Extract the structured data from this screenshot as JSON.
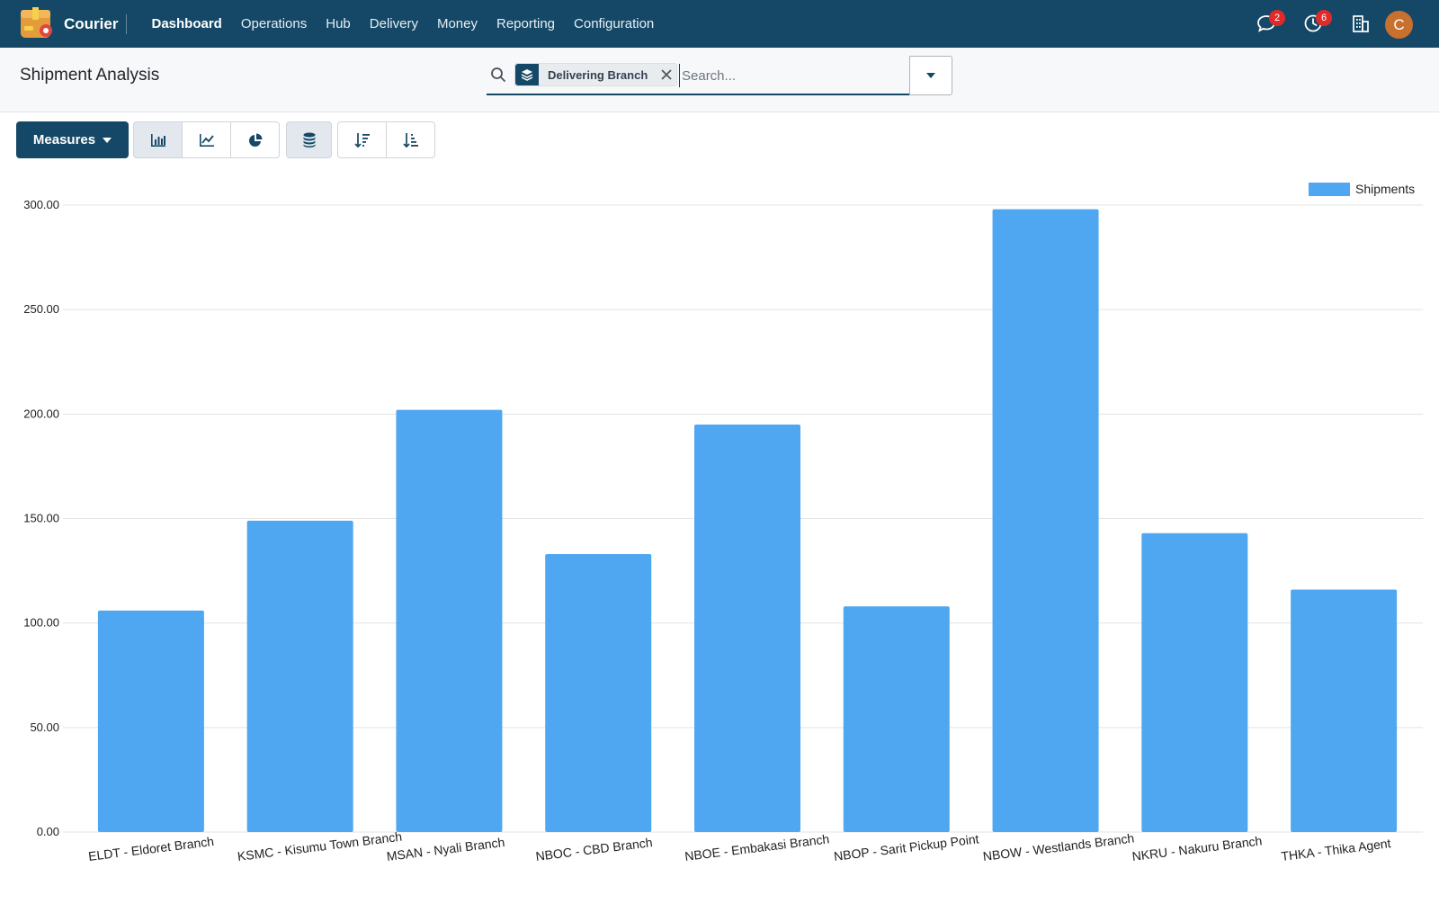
{
  "navbar": {
    "app_name": "Courier",
    "menu": [
      "Dashboard",
      "Operations",
      "Hub",
      "Delivery",
      "Money",
      "Reporting",
      "Configuration"
    ],
    "active_menu": "Dashboard",
    "messages_badge": "2",
    "activities_badge": "6",
    "avatar_initial": "C",
    "avatar_color": "#c8702e",
    "brand_color": "#154867"
  },
  "control_panel": {
    "title": "Shipment Analysis",
    "facet_label": "Delivering Branch",
    "search_placeholder": "Search..."
  },
  "toolbar": {
    "measures_label": "Measures",
    "chart_mode_buttons": [
      "bar-chart-icon",
      "line-chart-icon",
      "pie-chart-icon"
    ],
    "active_mode": "bar-chart-icon",
    "stacked_active": true,
    "sort_buttons": [
      "sort-descending-icon",
      "sort-ascending-icon"
    ]
  },
  "chart_data": {
    "type": "bar",
    "categories": [
      "ELDT - Eldoret Branch",
      "KSMC - Kisumu Town Branch",
      "MSAN - Nyali Branch",
      "NBOC - CBD Branch",
      "NBOE - Embakasi Branch",
      "NBOP - Sarit Pickup Point",
      "NBOW - Westlands Branch",
      "NKRU - Nakuru Branch",
      "THKA - Thika Agent"
    ],
    "series": [
      {
        "name": "Shipments",
        "values": [
          106,
          149,
          202,
          133,
          195,
          108,
          298,
          143,
          116
        ],
        "color": "#4fa6f1"
      }
    ],
    "yticks": [
      "0.00",
      "50.00",
      "100.00",
      "150.00",
      "200.00",
      "250.00",
      "300.00"
    ],
    "ylim": [
      0,
      300
    ],
    "grid": true,
    "legend_position": "top-right"
  }
}
